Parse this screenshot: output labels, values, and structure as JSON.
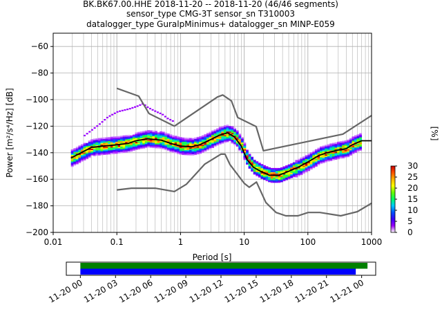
{
  "title_lines": [
    "BK.BK67.00.HHE   2018-11-20 -- 2018-11-20  (46/46 segments)",
    "sensor_type CMG-3T sensor_sn T310003",
    "datalogger_type GuralpMinimus+ datalogger_sn MINP-E059"
  ],
  "chart_data": [
    {
      "type": "heatmap",
      "xlabel": "Period [s]",
      "ylabel": "Power [m²/s⁴/Hz] [dB]",
      "x_scale": "log",
      "xlim": [
        0.01,
        1000
      ],
      "ylim": [
        -200,
        -50
      ],
      "x_ticks": [
        0.01,
        0.1,
        1,
        10,
        100,
        1000
      ],
      "x_tick_labels": [
        "0.01",
        "0.1",
        "1",
        "10",
        "100",
        "1000"
      ],
      "y_ticks": [
        -200,
        -180,
        -160,
        -140,
        -120,
        -100,
        -80,
        -60
      ],
      "y_tick_labels": [
        "−200",
        "−180",
        "−160",
        "−140",
        "−120",
        "−100",
        "−80",
        "−60"
      ],
      "grid": true,
      "colorbar": {
        "label": "[%]",
        "range": [
          0,
          30
        ],
        "ticks": [
          0,
          5,
          10,
          15,
          20,
          25,
          30
        ],
        "tick_labels": [
          "0",
          "5",
          "10",
          "15",
          "20",
          "25",
          "30"
        ],
        "colormap": [
          "#ffffff",
          "#9b00ff",
          "#3700ff",
          "#0050ff",
          "#00c8ff",
          "#00ff64",
          "#64ff00",
          "#ffff00",
          "#ffb400",
          "#ff5000",
          "#c80000"
        ]
      },
      "series": [
        {
          "role": "new-high-noise-model",
          "color": "#666666",
          "points": [
            [
              0.1,
              -91.5
            ],
            [
              0.22,
              -97.4
            ],
            [
              0.32,
              -110.5
            ],
            [
              0.8,
              -120
            ],
            [
              3.8,
              -98
            ],
            [
              4.6,
              -96.5
            ],
            [
              6.3,
              -101
            ],
            [
              7.9,
              -113.5
            ],
            [
              15.4,
              -120.3
            ],
            [
              20,
              -138.5
            ],
            [
              354.8,
              -126
            ],
            [
              1000,
              -112
            ]
          ]
        },
        {
          "role": "new-low-noise-model",
          "color": "#666666",
          "points": [
            [
              0.1,
              -168
            ],
            [
              0.17,
              -166.7
            ],
            [
              0.4,
              -166.7
            ],
            [
              0.8,
              -169.2
            ],
            [
              1.24,
              -163.7
            ],
            [
              2.4,
              -148.6
            ],
            [
              4.3,
              -141.1
            ],
            [
              5,
              -141.1
            ],
            [
              6,
              -149
            ],
            [
              10,
              -163
            ],
            [
              12,
              -166
            ],
            [
              15.6,
              -162.1
            ],
            [
              21.9,
              -177.5
            ],
            [
              31.6,
              -185
            ],
            [
              45,
              -187.5
            ],
            [
              70,
              -187.5
            ],
            [
              101,
              -185
            ],
            [
              154.5,
              -185
            ],
            [
              328.2,
              -187.5
            ],
            [
              600,
              -184.4
            ],
            [
              1000,
              -178
            ]
          ]
        },
        {
          "role": "mean",
          "color": "#000000",
          "points": [
            [
              0.019,
              -144
            ],
            [
              0.03,
              -139
            ],
            [
              0.04,
              -136
            ],
            [
              0.06,
              -135
            ],
            [
              0.1,
              -134
            ],
            [
              0.15,
              -133
            ],
            [
              0.2,
              -131
            ],
            [
              0.3,
              -129.5
            ],
            [
              0.5,
              -130.5
            ],
            [
              0.7,
              -133
            ],
            [
              1,
              -135
            ],
            [
              1.5,
              -135.5
            ],
            [
              2,
              -134
            ],
            [
              3,
              -130
            ],
            [
              4,
              -127
            ],
            [
              5.5,
              -125
            ],
            [
              7,
              -128
            ],
            [
              9,
              -135
            ],
            [
              11,
              -145
            ],
            [
              14,
              -151
            ],
            [
              18,
              -154
            ],
            [
              25,
              -157
            ],
            [
              35,
              -157
            ],
            [
              50,
              -154
            ],
            [
              70,
              -151
            ],
            [
              100,
              -147
            ],
            [
              150,
              -142
            ],
            [
              200,
              -140
            ],
            [
              300,
              -138
            ],
            [
              400,
              -137
            ],
            [
              500,
              -134
            ],
            [
              700,
              -131
            ],
            [
              1000,
              -131
            ]
          ]
        },
        {
          "role": "outlier-band",
          "color": "#9b00ff",
          "points": [
            [
              0.03,
              -127
            ],
            [
              0.05,
              -119
            ],
            [
              0.07,
              -113
            ],
            [
              0.1,
              -109
            ],
            [
              0.15,
              -107
            ],
            [
              0.2,
              -105
            ],
            [
              0.25,
              -103
            ],
            [
              0.3,
              -106
            ],
            [
              0.4,
              -109
            ],
            [
              0.5,
              -111
            ],
            [
              0.6,
              -114
            ],
            [
              0.8,
              -117
            ]
          ]
        }
      ]
    },
    {
      "type": "timeline",
      "x_tick_labels": [
        "11-20 00",
        "11-20 03",
        "11-20 06",
        "11-20 09",
        "11-20 12",
        "11-20 15",
        "11-20 18",
        "11-20 21",
        "11-21 00"
      ],
      "x_ticks_hours": [
        0,
        3,
        6,
        9,
        12,
        15,
        18,
        21,
        24
      ],
      "xlim_hours": [
        -1.2,
        25.2
      ],
      "bars": [
        {
          "role": "data",
          "color": "#008000",
          "start_hours": 0,
          "end_hours": 24.5
        },
        {
          "role": "psd",
          "color": "#0000ff",
          "start_hours": 0,
          "end_hours": 23.5
        }
      ]
    }
  ]
}
